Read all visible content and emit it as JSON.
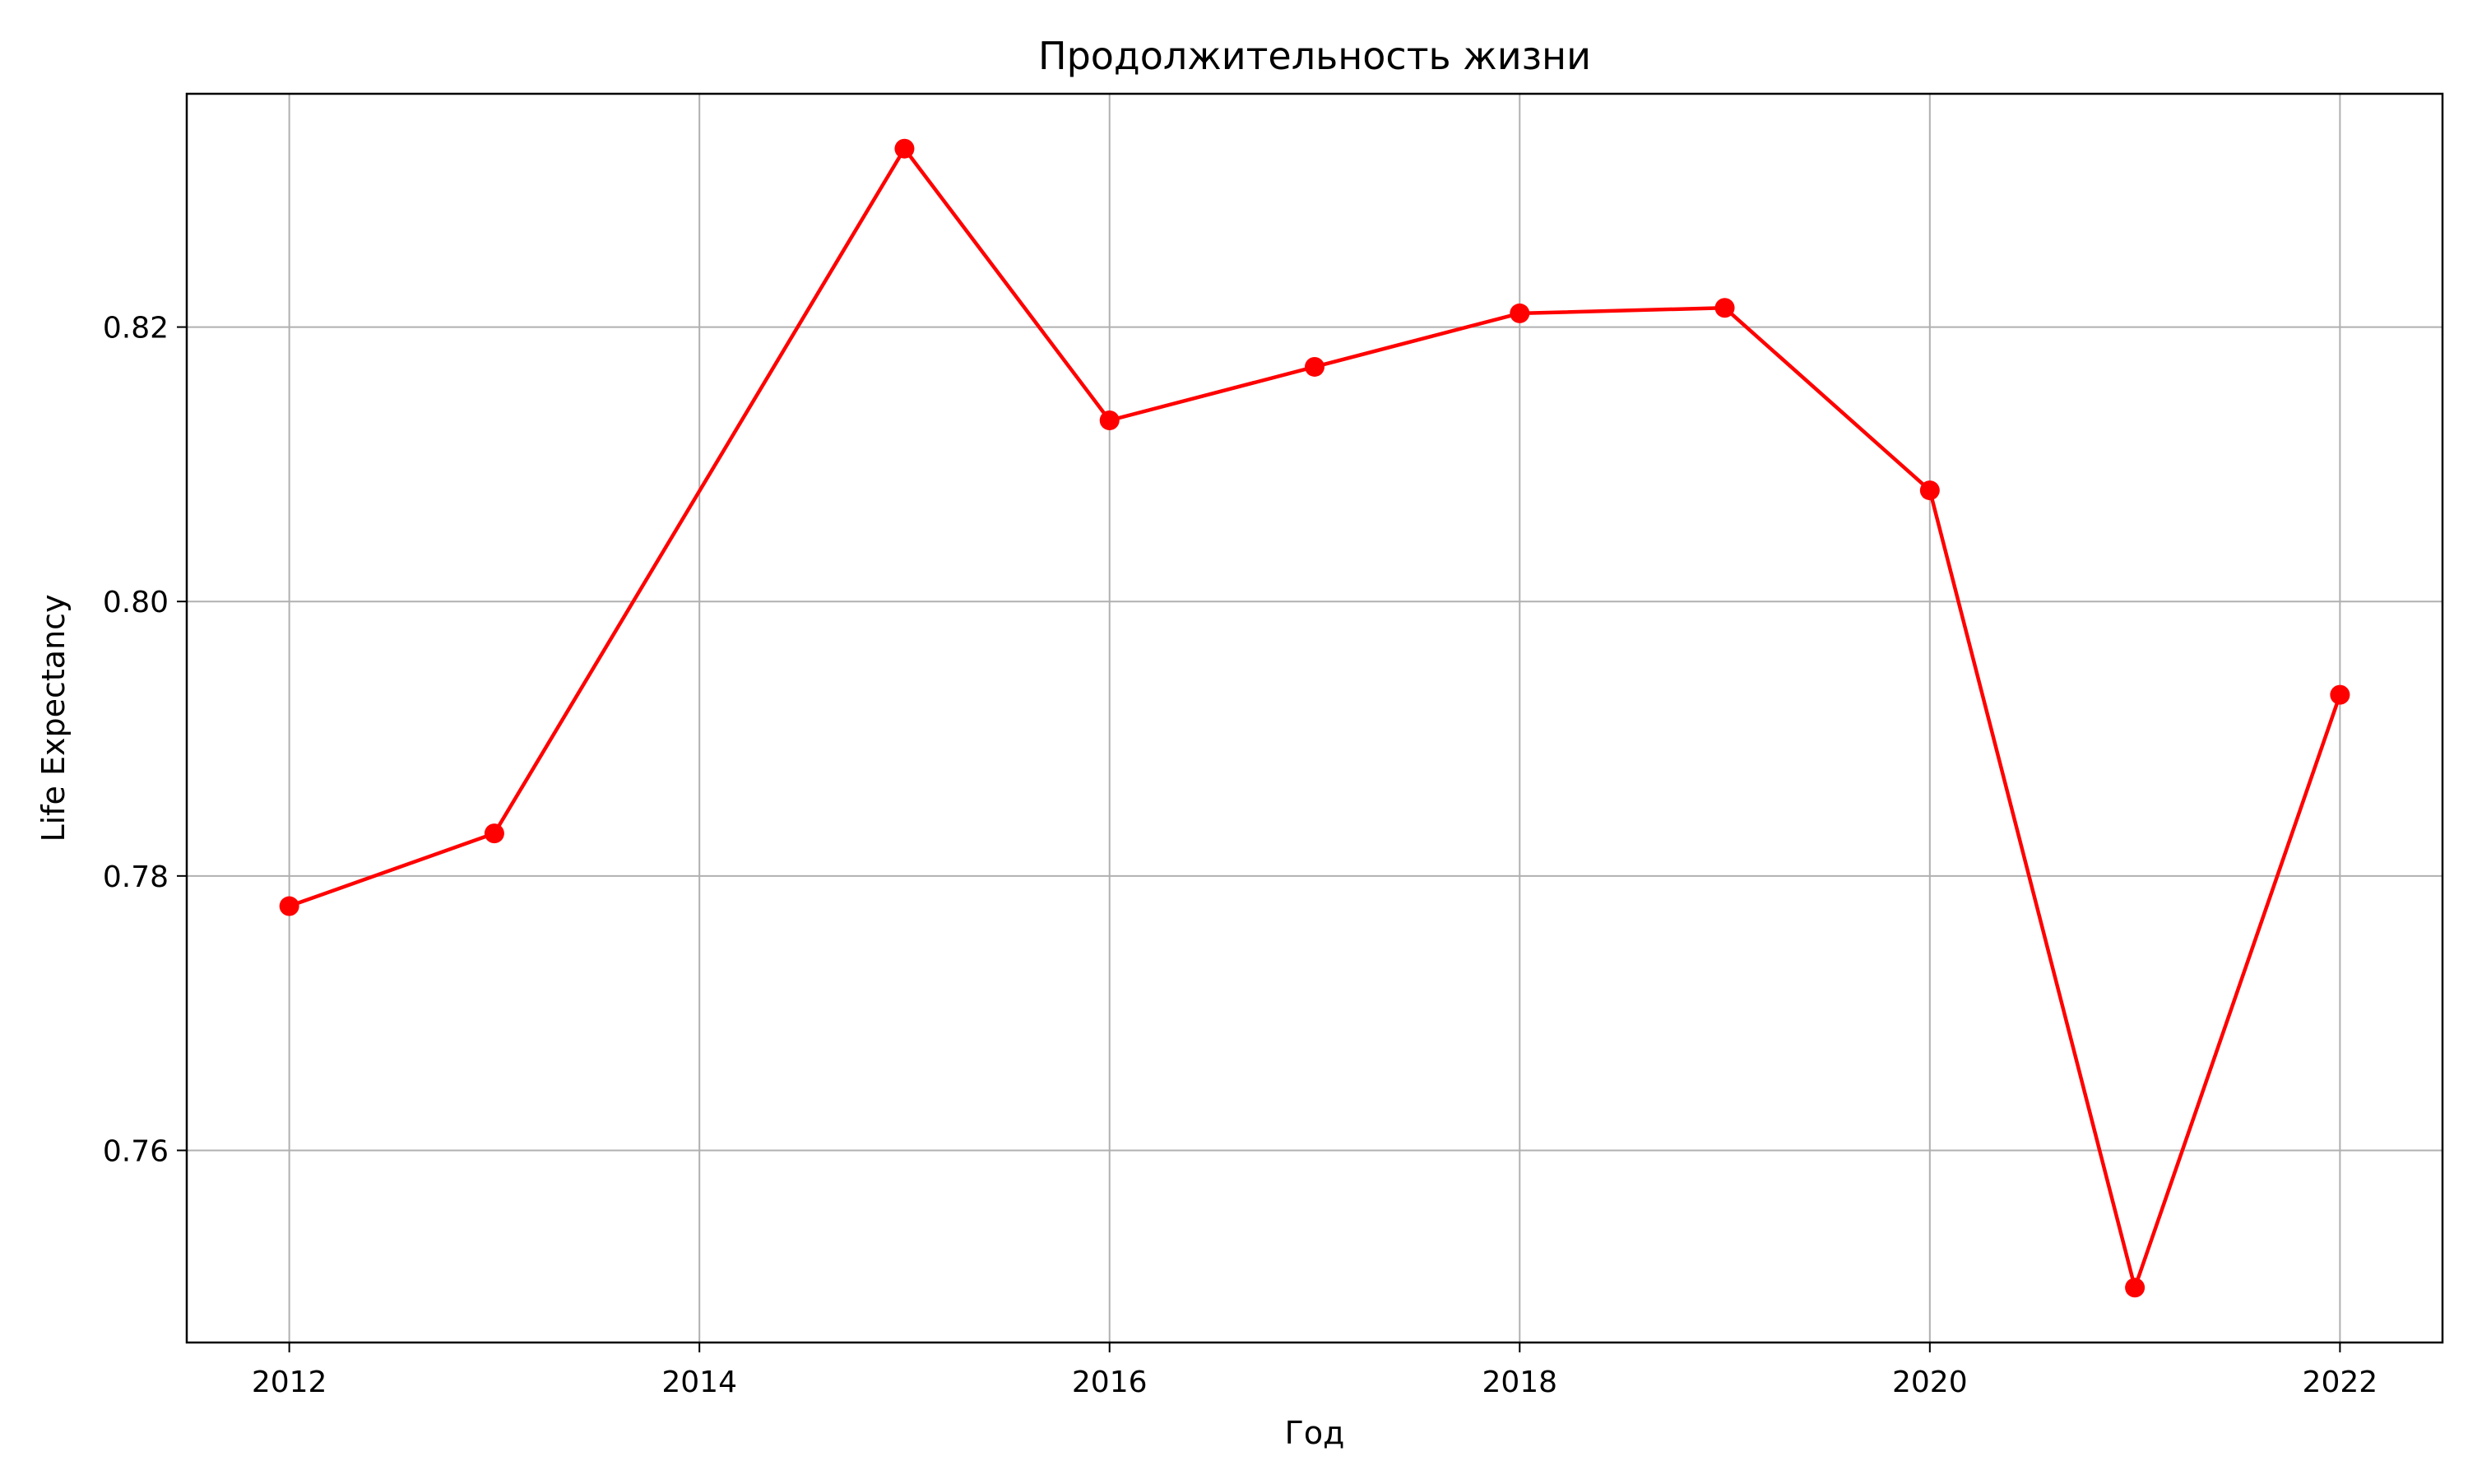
{
  "chart_data": {
    "type": "line",
    "title": "Продолжительность жизни",
    "xlabel": "Год",
    "ylabel": "Life Expectancy",
    "xlim": [
      2011.5,
      2022.5
    ],
    "ylim": [
      0.746,
      0.837
    ],
    "x_ticks": [
      "2012",
      "2014",
      "2016",
      "2018",
      "2020",
      "2022"
    ],
    "y_ticks": [
      "0.76",
      "0.78",
      "0.80",
      "0.82"
    ],
    "grid": true,
    "legend": "none",
    "series": [
      {
        "color": "#ff0000",
        "marker": "circle",
        "x": [
          2012,
          2013,
          2015,
          2016,
          2017,
          2018,
          2019,
          2020,
          2021,
          2022
        ],
        "y": [
          0.7778,
          0.7831,
          0.833,
          0.8132,
          0.8171,
          0.821,
          0.8214,
          0.8081,
          0.75,
          0.7932
        ]
      }
    ]
  }
}
